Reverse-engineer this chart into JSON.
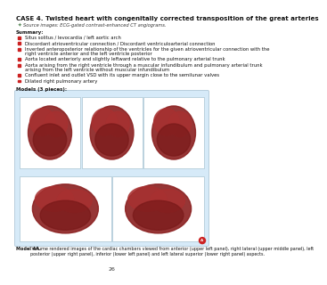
{
  "title": "CASE 4. Twisted heart with congenitally corrected transposition of the great arteries",
  "source_symbol": "✦",
  "source_color": "#5a8a5a",
  "source_text": "Source images: ECG-gated contrast-enhanced CT angiograms.",
  "summary_label": "Summary:",
  "bullet_color": "#cc2222",
  "bullets": [
    "Situs solitus / levocardia / left aortic arch",
    "Discordant atrioventricular connection / Discordant ventriculoarterial connection",
    "Inverted anteroposterior relationship of the ventricles for the given atrioventricular connection with the\nright ventricle anterior and the left ventricle posterior",
    "Aorta located anteriorly and slightly leftward relative to the pulmonary arterial trunk",
    "Aorta arising from the right ventricle through a muscular infundibulum and pulmonary arterial trunk\narising from the left ventricle without muscular infundibulum",
    "Confluent inlet and outlet VSD with its upper margin close to the semilunar valves",
    "Dilated right pulmonary artery"
  ],
  "models_label": "Models (3 pieces):",
  "image_bg": "#d6eaf8",
  "image_border": "#b0c8d8",
  "heart_colors": [
    "#8b2020",
    "#a03030",
    "#b04040"
  ],
  "figure_bold": "Model 4A.",
  "figure_caption": " Volume rendered images of the cardiac chambers viewed from anterior (upper left panel), right lateral (upper middle panel), left posterior (upper right panel), inferior (lower left panel) and left lateral superior (lower right panel) aspects.",
  "page_number": "26",
  "bg_color": "#ffffff",
  "title_fontsize": 5.0,
  "body_fontsize": 4.0,
  "bullet_fontsize": 3.8,
  "caption_fontsize": 3.5,
  "page_fontsize": 4.5
}
